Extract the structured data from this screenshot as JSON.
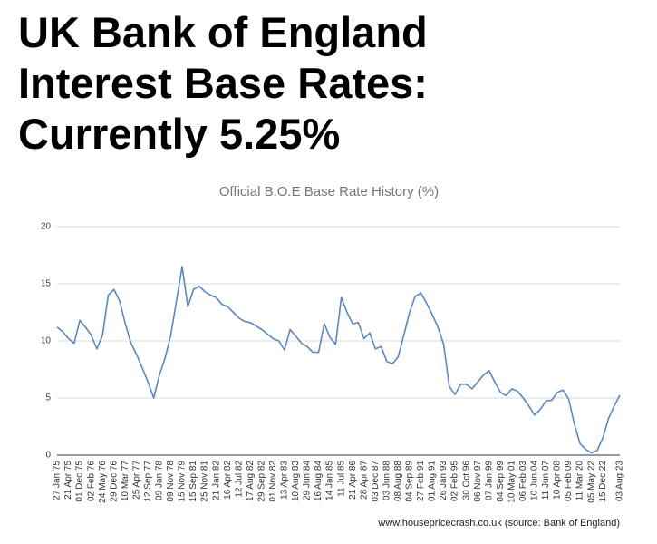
{
  "header": {
    "title": "UK Bank of England Interest Base Rates: Currently 5.25%"
  },
  "chart_data": {
    "type": "line",
    "title": "Official B.O.E Base Rate History (%)",
    "source": "www.housepricecrash.co.uk (source: Bank of England)",
    "color": "#5b87c7",
    "grid": true,
    "ylim": [
      0,
      20
    ],
    "yticks": [
      0,
      5,
      10,
      15,
      20
    ],
    "categories": [
      "27 Jan 75",
      null,
      "21 Apr 75",
      null,
      "01 Dec 75",
      null,
      "02 Feb 76",
      null,
      "24 May 76",
      null,
      "29 Dec 76",
      null,
      "10 Mar 77",
      null,
      "25 Apr 77",
      null,
      "12 Sep 77",
      null,
      "09 Jan 78",
      null,
      "09 Nov 78",
      null,
      "15 Nov 79",
      null,
      "15 Sep 81",
      null,
      "25 Nov 81",
      null,
      "21 Jan 82",
      null,
      "16 Apr 82",
      null,
      "12 Jul 82",
      null,
      "17 Aug 82",
      null,
      "29 Sep 82",
      null,
      "01 Nov 82",
      null,
      "13 Apr 83",
      null,
      "10 Aug 83",
      null,
      "29 Jun 84",
      null,
      "16 Aug 84",
      null,
      "14 Jan 85",
      null,
      "11 Jul 85",
      null,
      "21 Apr 86",
      null,
      "28 Apr 87",
      null,
      "03 Dec 87",
      null,
      "03 Jun 88",
      null,
      "08 Aug 88",
      null,
      "04 Sep 89",
      null,
      "27 Feb 91",
      null,
      "01 Aug 91",
      null,
      "26 Jan 93",
      null,
      "02 Feb 95",
      null,
      "30 Oct 96",
      null,
      "06 Nov 97",
      null,
      "07 Jan 99",
      null,
      "04 Sep 99",
      null,
      "10 May 01",
      null,
      "06 Feb 03",
      null,
      "10 Jun 04",
      null,
      "11 Jun 07",
      null,
      "10 Apr 08",
      null,
      "05 Feb 09",
      null,
      "11 Mar 20",
      null,
      "05 May 22",
      null,
      "15 Dec 22",
      null,
      null,
      "03 Aug 23"
    ],
    "values": [
      11.2,
      10.8,
      10.2,
      9.8,
      11.8,
      11.2,
      10.5,
      9.3,
      10.5,
      14,
      14.5,
      13.5,
      11.5,
      9.8,
      8.8,
      7.6,
      6.4,
      5,
      7,
      8.5,
      10.5,
      13.5,
      16.5,
      13,
      14.5,
      14.8,
      14.3,
      14,
      13.8,
      13.2,
      13,
      12.5,
      12,
      11.7,
      11.6,
      11.3,
      11,
      10.6,
      10.2,
      10,
      9.2,
      11,
      10.4,
      9.8,
      9.5,
      9,
      9,
      11.5,
      10.3,
      9.7,
      13.8,
      12.5,
      11.5,
      11.6,
      10.2,
      10.7,
      9.3,
      9.5,
      8.2,
      8,
      8.6,
      10.5,
      12.5,
      13.9,
      14.2,
      13.3,
      12.3,
      11.2,
      9.7,
      6,
      5.3,
      6.2,
      6.2,
      5.8,
      6.4,
      7,
      7.4,
      6.4,
      5.5,
      5.2,
      5.8,
      5.6,
      5,
      4.3,
      3.5,
      4,
      4.75,
      4.8,
      5.5,
      5.7,
      4.9,
      2.7,
      1,
      0.5,
      0.2,
      0.4,
      1.5,
      3.2,
      4.3,
      5.25
    ]
  }
}
